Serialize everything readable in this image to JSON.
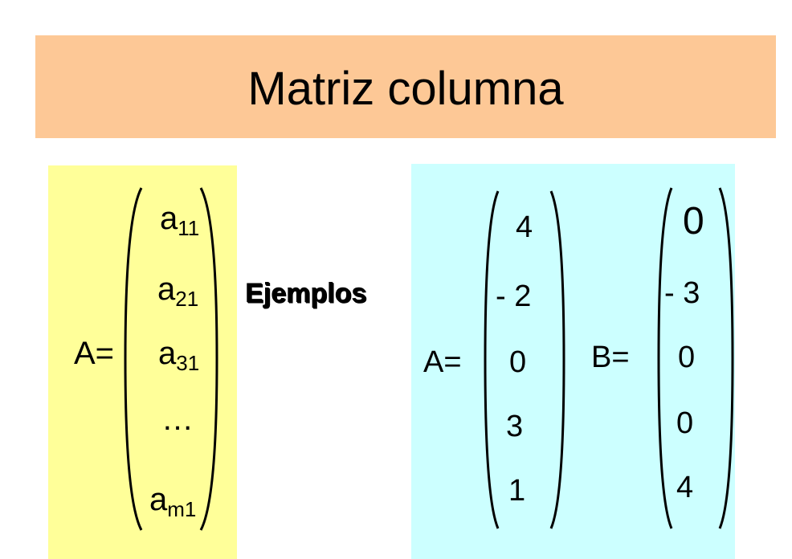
{
  "title": "Matriz columna",
  "general": {
    "label": "A=",
    "entries": [
      {
        "base": "a",
        "sub": "11"
      },
      {
        "base": "a",
        "sub": "21"
      },
      {
        "base": "a",
        "sub": "31"
      },
      {
        "base": "…",
        "sub": ""
      },
      {
        "base": "a",
        "sub": "m1"
      }
    ]
  },
  "ejemplos_label": "Ejemplos",
  "example_a": {
    "label": "A=",
    "entries": [
      "4",
      "- 2",
      "0",
      "3",
      "1"
    ]
  },
  "example_b": {
    "label": "B=",
    "entries": [
      "0",
      "- 3",
      "0",
      "0",
      "4"
    ]
  },
  "colors": {
    "title_background": "#fdc896",
    "general_background": "#ffff99",
    "examples_background": "#ccffff"
  }
}
